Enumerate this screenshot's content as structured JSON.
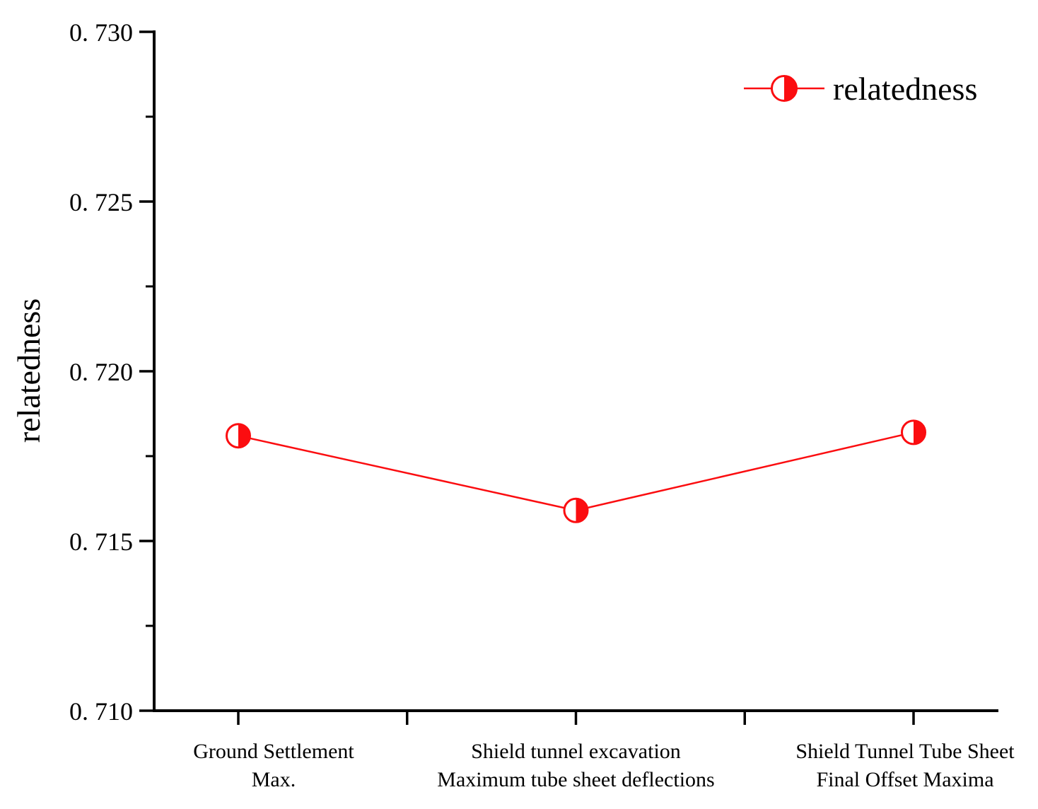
{
  "chart_data": {
    "type": "line",
    "title": "",
    "xlabel": "",
    "ylabel": "relatedness",
    "categories": [
      "Ground Settlement\nMax.",
      "Shield tunnel excavation\nMaximum tube sheet deflections",
      "Shield Tunnel Tube Sheet\nFinal Offset Maxima"
    ],
    "series": [
      {
        "name": "relatedness",
        "values": [
          0.7181,
          0.7159,
          0.7182
        ],
        "color": "#fb0d10",
        "marker": "half-filled-circle"
      }
    ],
    "ylim": [
      0.71,
      0.73
    ],
    "ytick_values": [
      0.73,
      0.725,
      0.72,
      0.715,
      0.71
    ],
    "ytick_labels": [
      "0. 730",
      "0. 725",
      "0. 720",
      "0. 715",
      "0. 710"
    ],
    "yminor_values": [
      0.7275,
      0.7225,
      0.7175,
      0.7125
    ],
    "x_minor_ticks_between_categories": true,
    "grid": false,
    "legend": {
      "label": "relatedness",
      "position": "top-right"
    }
  },
  "colors": {
    "series": "#fb0d10",
    "axis": "#000000",
    "text": "#000000",
    "background": "#ffffff"
  }
}
